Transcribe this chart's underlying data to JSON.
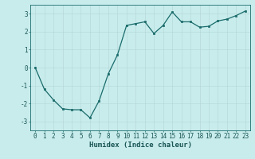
{
  "x": [
    0,
    1,
    2,
    3,
    4,
    5,
    6,
    7,
    8,
    9,
    10,
    11,
    12,
    13,
    14,
    15,
    16,
    17,
    18,
    19,
    20,
    21,
    22,
    23
  ],
  "y": [
    0.0,
    -1.2,
    -1.8,
    -2.3,
    -2.35,
    -2.35,
    -2.8,
    -1.85,
    -0.35,
    0.7,
    2.35,
    2.45,
    2.55,
    1.9,
    2.35,
    3.1,
    2.55,
    2.55,
    2.25,
    2.3,
    2.6,
    2.7,
    2.9,
    3.15
  ],
  "line_color": "#1a6b6b",
  "marker": "s",
  "markersize": 2,
  "linewidth": 0.9,
  "background_color": "#c8ecec",
  "grid_color_major": "#b8d8d8",
  "grid_color_minor": "#d8eeee",
  "xlabel": "Humidex (Indice chaleur)",
  "xlabel_fontsize": 6.5,
  "tick_fontsize": 5.5,
  "ylim": [
    -3.5,
    3.5
  ],
  "xlim": [
    -0.5,
    23.5
  ],
  "yticks": [
    -3,
    -2,
    -1,
    0,
    1,
    2,
    3
  ],
  "xticks": [
    0,
    1,
    2,
    3,
    4,
    5,
    6,
    7,
    8,
    9,
    10,
    11,
    12,
    13,
    14,
    15,
    16,
    17,
    18,
    19,
    20,
    21,
    22,
    23
  ]
}
